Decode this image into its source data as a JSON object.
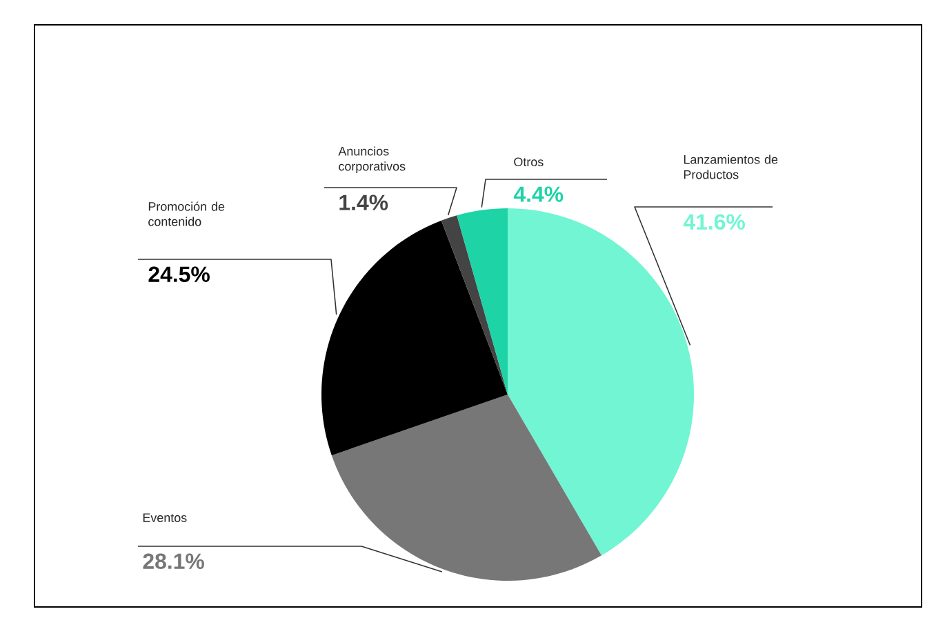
{
  "chart_data": {
    "type": "pie",
    "categories": [
      "Lanzamientos de Productos",
      "Eventos",
      "Promoción de contenido",
      "Anuncios corporativos",
      "Otros"
    ],
    "values": [
      41.6,
      28.1,
      24.5,
      1.4,
      4.4
    ],
    "colors": [
      "#72f5d3",
      "#777777",
      "#000000",
      "#444444",
      "#1ed3a6"
    ],
    "value_labels": [
      "41.6%",
      "28.1%",
      "24.5%",
      "1.4%",
      "4.4%"
    ]
  }
}
